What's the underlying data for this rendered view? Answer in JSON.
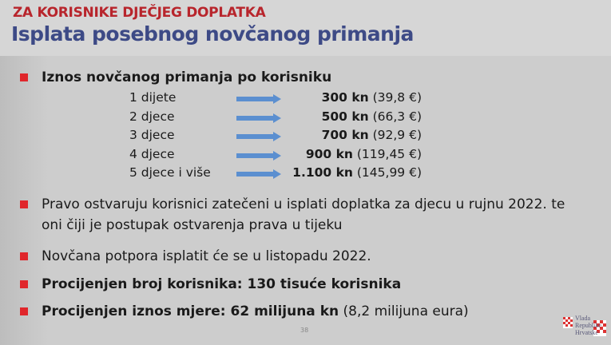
{
  "header": {
    "supertitle": "ZA KORISNIKE DJEČJEG DOPLATKA",
    "title": "Isplata posebnog novčanog primanja"
  },
  "bullets": [
    {
      "text": "Iznos novčanog primanja po korisniku"
    },
    {
      "text": "Pravo ostvaruju korisnici zatečeni u isplati doplatka za djecu u rujnu 2022. te oni čiji je postupak ostvarenja prava u tijeku"
    },
    {
      "text": "Novčana potpora isplatit će se u listopadu 2022."
    },
    {
      "bold": "Procijenjen broj korisnika: 130 tisuće korisnika"
    },
    {
      "bold": "Procijenjen iznos mjere: 62 milijuna kn",
      "rest": " (8,2 milijuna eura)"
    }
  ],
  "amounts": [
    {
      "label": "1 dijete",
      "kn": "300 kn",
      "eur": " (39,8 €)"
    },
    {
      "label": "2 djece",
      "kn": "500 kn",
      "eur": " (66,3 €)"
    },
    {
      "label": "3 djece",
      "kn": "700 kn",
      "eur": " (92,9 €)"
    },
    {
      "label": "4 djece",
      "kn": "900 kn",
      "eur": " (119,45 €)"
    },
    {
      "label": "5 djece i više",
      "kn": "1.100 kn",
      "eur": " (145,99 €)"
    }
  ],
  "page_number": "38",
  "logo": {
    "text": [
      "Vlada",
      "Republike",
      "Hrvatske"
    ]
  },
  "colors": {
    "supertitle": "#b8252c",
    "title": "#3d4a86",
    "bullet": "#e0262b",
    "arrow": "#5b8fd0"
  }
}
